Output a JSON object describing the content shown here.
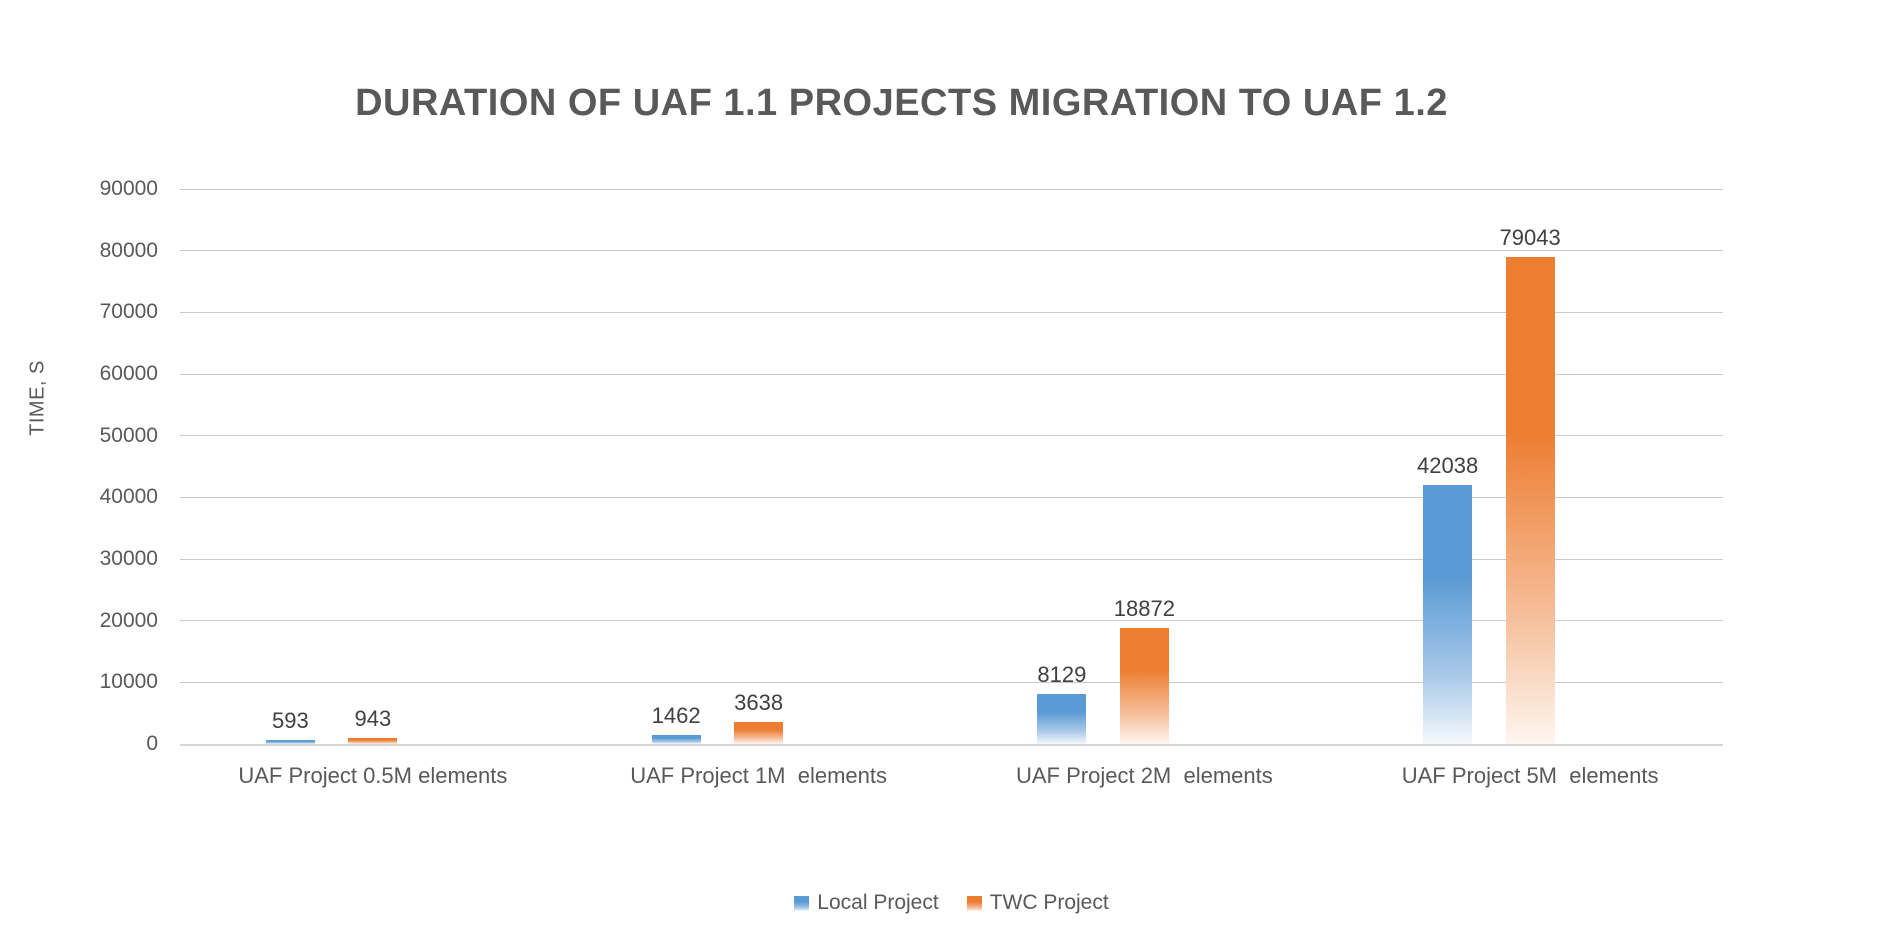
{
  "chart_data": {
    "type": "bar",
    "title": "DURATION OF UAF 1.1 PROJECTS MIGRATION TO UAF 1.2",
    "ylabel": "TIME, S",
    "xlabel": "",
    "categories": [
      "UAF Project 0.5M elements",
      "UAF Project 1M  elements",
      "UAF Project 2M  elements",
      "UAF Project 5M  elements"
    ],
    "series": [
      {
        "name": "Local Project",
        "color": "#5B9BD5",
        "color_mid": "#A9C9E9",
        "color_fade": "#F5F9FD",
        "values": [
          593,
          1462,
          8129,
          42038
        ]
      },
      {
        "name": "TWC Project",
        "color": "#ED7D31",
        "color_mid": "#F6BF9B",
        "color_fade": "#FEF6F0",
        "values": [
          943,
          3638,
          18872,
          79043
        ]
      }
    ],
    "data_labels": [
      [
        "593",
        "1462",
        "8129",
        "42038"
      ],
      [
        "943",
        "3638",
        "18872",
        "79043"
      ]
    ],
    "ylim": [
      0,
      90000
    ],
    "ytick_step": 10000,
    "ytick_labels": [
      "0",
      "10000",
      "20000",
      "30000",
      "40000",
      "50000",
      "60000",
      "70000",
      "80000",
      "90000"
    ],
    "grid": true,
    "legend_position": "bottom",
    "bar_fill_style": "gradient-to-white-bottom"
  },
  "styles": {
    "background": "#FFFFFF",
    "title_color": "#595959",
    "axis_text_color": "#595959",
    "data_label_color": "#404040",
    "gridline_color": "#C9C9C9",
    "axis_line_color": "#D6D6D6"
  }
}
